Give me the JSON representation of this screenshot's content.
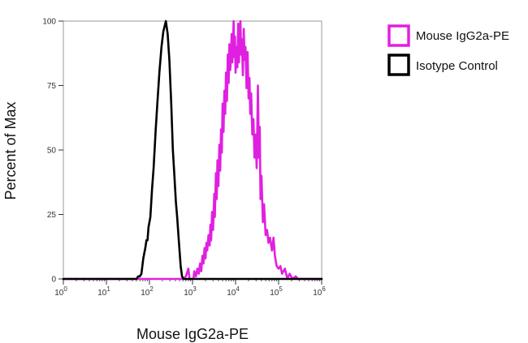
{
  "chart_data": {
    "type": "line",
    "title": "",
    "xlabel": "Mouse IgG2a-PE",
    "ylabel": "Percent of Max",
    "x_scale": "log",
    "xlim": [
      1,
      1000000
    ],
    "ylim": [
      0,
      100
    ],
    "grid": false,
    "legend_position": "top-right",
    "x_tick_labels": [
      {
        "value": 1,
        "base": "10",
        "exp": "0"
      },
      {
        "value": 10,
        "base": "10",
        "exp": "1"
      },
      {
        "value": 100,
        "base": "10",
        "exp": "2"
      },
      {
        "value": 1000,
        "base": "10",
        "exp": "3"
      },
      {
        "value": 10000,
        "base": "10",
        "exp": "4"
      },
      {
        "value": 100000,
        "base": "10",
        "exp": "5"
      },
      {
        "value": 1000000,
        "base": "10",
        "exp": "6"
      }
    ],
    "y_ticks": [
      0,
      25,
      50,
      75,
      100
    ],
    "y_tick_labels": [
      "0",
      "25",
      "50",
      "75",
      "100"
    ],
    "series": [
      {
        "name": "Mouse IgG2a-PE",
        "color": "#e020e0",
        "points": [
          [
            1,
            0
          ],
          [
            620,
            0
          ],
          [
            700,
            1
          ],
          [
            800,
            4
          ],
          [
            850,
            0
          ],
          [
            1050,
            0
          ],
          [
            1100,
            3
          ],
          [
            1200,
            1
          ],
          [
            1300,
            4
          ],
          [
            1400,
            2
          ],
          [
            1500,
            6
          ],
          [
            1600,
            3
          ],
          [
            1700,
            9
          ],
          [
            1800,
            6
          ],
          [
            1900,
            12
          ],
          [
            2000,
            8
          ],
          [
            2100,
            14
          ],
          [
            2200,
            11
          ],
          [
            2350,
            17
          ],
          [
            2500,
            13
          ],
          [
            2600,
            21
          ],
          [
            2700,
            15
          ],
          [
            2850,
            26
          ],
          [
            3000,
            19
          ],
          [
            3200,
            33
          ],
          [
            3300,
            24
          ],
          [
            3500,
            41
          ],
          [
            3650,
            31
          ],
          [
            3800,
            46
          ],
          [
            4000,
            36
          ],
          [
            4200,
            52
          ],
          [
            4400,
            42
          ],
          [
            4600,
            58
          ],
          [
            4800,
            49
          ],
          [
            5000,
            68
          ],
          [
            5250,
            57
          ],
          [
            5500,
            73
          ],
          [
            5750,
            64
          ],
          [
            6000,
            80
          ],
          [
            6300,
            69
          ],
          [
            6600,
            87
          ],
          [
            6900,
            76
          ],
          [
            7200,
            91
          ],
          [
            7500,
            81
          ],
          [
            7800,
            85
          ],
          [
            8100,
            95
          ],
          [
            8400,
            84
          ],
          [
            8700,
            90
          ],
          [
            9000,
            100
          ],
          [
            9300,
            86
          ],
          [
            9700,
            94
          ],
          [
            10000,
            80
          ],
          [
            10500,
            90
          ],
          [
            11000,
            82
          ],
          [
            11500,
            99
          ],
          [
            12000,
            84
          ],
          [
            12500,
            95
          ],
          [
            13000,
            100
          ],
          [
            13500,
            87
          ],
          [
            14000,
            93
          ],
          [
            14800,
            79
          ],
          [
            15500,
            97
          ],
          [
            16200,
            85
          ],
          [
            17000,
            90
          ],
          [
            18000,
            74
          ],
          [
            19000,
            88
          ],
          [
            20000,
            70
          ],
          [
            21000,
            78
          ],
          [
            22000,
            64
          ],
          [
            23000,
            72
          ],
          [
            24500,
            56
          ],
          [
            26000,
            62
          ],
          [
            27500,
            47
          ],
          [
            29000,
            56
          ],
          [
            31000,
            43
          ],
          [
            33000,
            75
          ],
          [
            35000,
            47
          ],
          [
            36500,
            59
          ],
          [
            38000,
            31
          ],
          [
            40000,
            40
          ],
          [
            43000,
            22
          ],
          [
            46000,
            29
          ],
          [
            50000,
            17
          ],
          [
            54000,
            19
          ],
          [
            58000,
            14
          ],
          [
            63000,
            16
          ],
          [
            70000,
            11
          ],
          [
            76000,
            16
          ],
          [
            82000,
            9
          ],
          [
            90000,
            5
          ],
          [
            100000,
            4
          ],
          [
            110000,
            5
          ],
          [
            120000,
            2
          ],
          [
            140000,
            4
          ],
          [
            160000,
            0
          ],
          [
            180000,
            2
          ],
          [
            210000,
            0
          ],
          [
            250000,
            1
          ],
          [
            280000,
            0
          ],
          [
            1000000,
            0
          ]
        ]
      },
      {
        "name": "Isotype Control",
        "color": "#000000",
        "points": [
          [
            1,
            0
          ],
          [
            50,
            0
          ],
          [
            55,
            1
          ],
          [
            60,
            1
          ],
          [
            65,
            2
          ],
          [
            72,
            8
          ],
          [
            80,
            12
          ],
          [
            85,
            15
          ],
          [
            90,
            15
          ],
          [
            95,
            20
          ],
          [
            105,
            24
          ],
          [
            115,
            35
          ],
          [
            125,
            43
          ],
          [
            140,
            58
          ],
          [
            155,
            70
          ],
          [
            170,
            80
          ],
          [
            190,
            90
          ],
          [
            210,
            96
          ],
          [
            240,
            100
          ],
          [
            265,
            95
          ],
          [
            290,
            85
          ],
          [
            320,
            68
          ],
          [
            350,
            50
          ],
          [
            380,
            40
          ],
          [
            410,
            30
          ],
          [
            440,
            24
          ],
          [
            480,
            15
          ],
          [
            530,
            5
          ],
          [
            570,
            1
          ],
          [
            620,
            0
          ],
          [
            1000000,
            0
          ]
        ]
      }
    ]
  }
}
